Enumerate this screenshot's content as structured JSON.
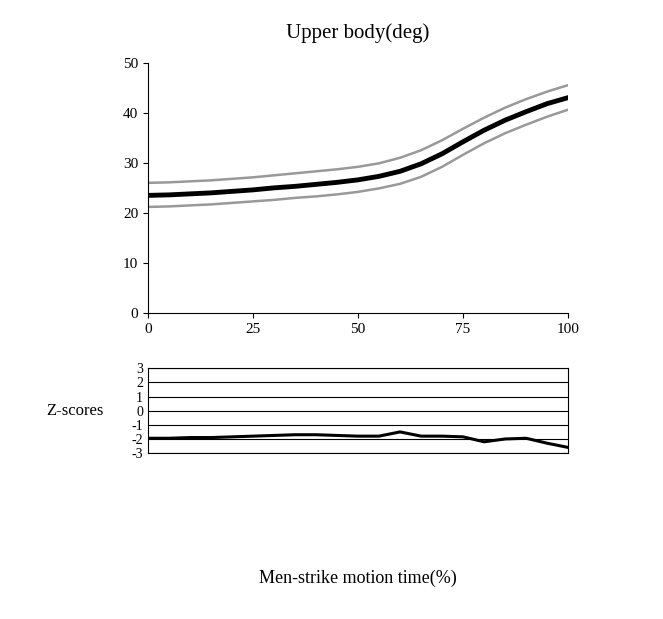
{
  "chart_data": [
    {
      "type": "line",
      "title": "Upper body(deg)",
      "x": [
        0,
        5,
        10,
        15,
        20,
        25,
        30,
        35,
        40,
        45,
        50,
        55,
        60,
        65,
        70,
        75,
        80,
        85,
        90,
        95,
        100
      ],
      "series": [
        {
          "color": "#000000",
          "line_style": "solid",
          "values": [
            23.5,
            23.6,
            23.8,
            24.0,
            24.3,
            24.6,
            25.0,
            25.3,
            25.7,
            26.1,
            26.6,
            27.3,
            28.3,
            29.8,
            31.8,
            34.2,
            36.5,
            38.5,
            40.2,
            41.8,
            43.0
          ]
        },
        {
          "color": "#999999",
          "line_style": "solid",
          "values": [
            26.0,
            26.1,
            26.3,
            26.5,
            26.8,
            27.1,
            27.5,
            27.9,
            28.3,
            28.7,
            29.2,
            29.9,
            31.0,
            32.5,
            34.5,
            36.8,
            39.0,
            41.0,
            42.7,
            44.2,
            45.5
          ]
        },
        {
          "color": "#999999",
          "line_style": "solid",
          "values": [
            21.2,
            21.3,
            21.5,
            21.7,
            22.0,
            22.3,
            22.6,
            23.0,
            23.3,
            23.7,
            24.2,
            24.9,
            25.8,
            27.2,
            29.2,
            31.6,
            33.9,
            35.9,
            37.6,
            39.2,
            40.6
          ]
        }
      ],
      "xlim": [
        0,
        100
      ],
      "xticks": [
        0,
        25,
        50,
        75,
        100
      ],
      "ylim": [
        0,
        50
      ],
      "yticks": [
        0,
        10,
        20,
        30,
        40,
        50
      ],
      "grid": false
    },
    {
      "type": "line",
      "ylabel": "Z-scores",
      "xlabel": "Men-strike motion time(%)",
      "x": [
        0,
        5,
        10,
        15,
        20,
        25,
        30,
        35,
        40,
        45,
        50,
        55,
        60,
        65,
        70,
        75,
        80,
        85,
        90,
        95,
        100
      ],
      "series": [
        {
          "color": "#000000",
          "line_style": "solid",
          "values": [
            -1.95,
            -1.95,
            -1.9,
            -1.9,
            -1.85,
            -1.8,
            -1.75,
            -1.7,
            -1.7,
            -1.75,
            -1.8,
            -1.8,
            -1.5,
            -1.8,
            -1.8,
            -1.85,
            -2.2,
            -2.0,
            -1.95,
            -2.3,
            -2.6
          ]
        }
      ],
      "xlim": [
        0,
        100
      ],
      "ylim": [
        -3,
        3
      ],
      "yticks": [
        -3,
        -2,
        -1,
        0,
        1,
        2,
        3
      ],
      "grid": true,
      "tick_labels": "y"
    }
  ]
}
